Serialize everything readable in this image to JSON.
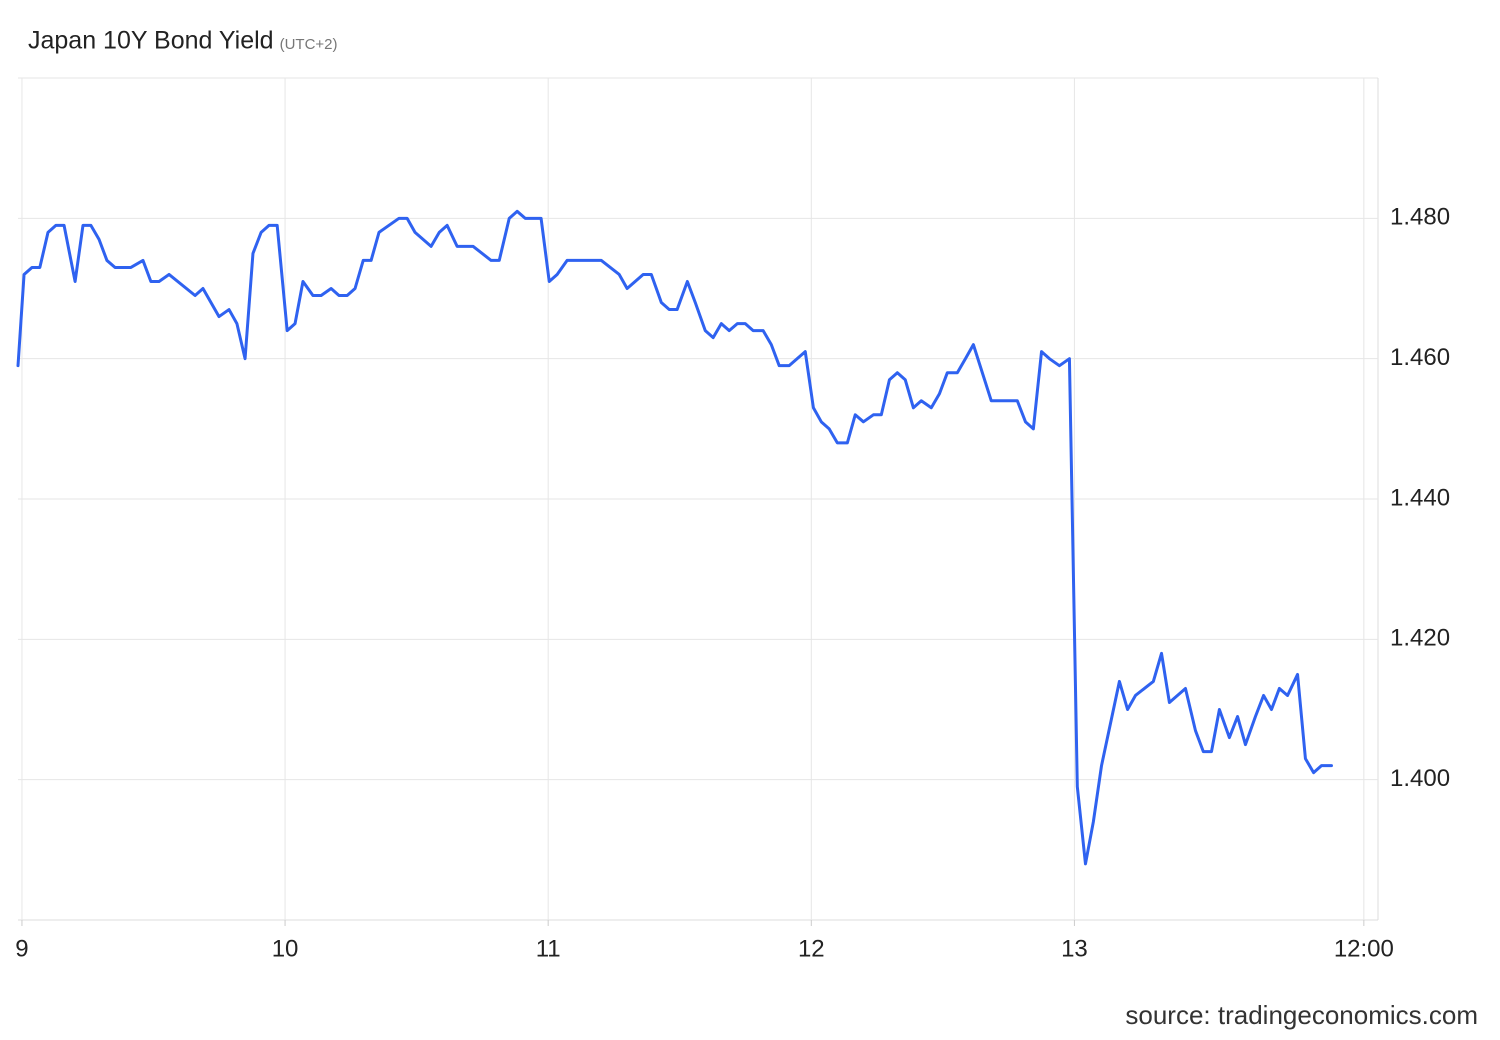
{
  "chart_data": {
    "type": "line",
    "title": "Japan 10Y Bond Yield",
    "subtitle": "(UTC+2)",
    "source": "source: tradingeconomics.com",
    "color": "#2f62f0",
    "grid": true,
    "xlim": [
      8.985,
      14.15
    ],
    "xticks": [
      9,
      10,
      11,
      12,
      13,
      {
        "value": 14.1,
        "label": "12:00"
      }
    ],
    "ylim": [
      1.38,
      1.5
    ],
    "yticks": [
      {
        "value": 1.4,
        "label": "1.400"
      },
      {
        "value": 1.42,
        "label": "1.420"
      },
      {
        "value": 1.44,
        "label": "1.440"
      },
      {
        "value": 1.46,
        "label": "1.460"
      },
      {
        "value": 1.48,
        "label": "1.480"
      }
    ],
    "x": [
      8.985,
      9.008,
      9.038,
      9.068,
      9.099,
      9.129,
      9.16,
      9.202,
      9.232,
      9.262,
      9.293,
      9.323,
      9.354,
      9.414,
      9.46,
      9.49,
      9.521,
      9.559,
      9.658,
      9.688,
      9.749,
      9.787,
      9.817,
      9.848,
      9.878,
      9.909,
      9.939,
      9.97,
      10.008,
      10.038,
      10.068,
      10.106,
      10.137,
      10.175,
      10.205,
      10.236,
      10.266,
      10.297,
      10.327,
      10.357,
      10.433,
      10.464,
      10.494,
      10.555,
      10.586,
      10.616,
      10.654,
      10.715,
      10.783,
      10.814,
      10.852,
      10.882,
      10.913,
      10.973,
      11.004,
      11.034,
      11.072,
      11.202,
      11.27,
      11.3,
      11.361,
      11.392,
      11.43,
      11.46,
      11.49,
      11.529,
      11.559,
      11.597,
      11.627,
      11.658,
      11.688,
      11.719,
      11.749,
      11.779,
      11.817,
      11.848,
      11.878,
      11.916,
      11.977,
      12.008,
      12.038,
      12.068,
      12.099,
      12.137,
      12.167,
      12.198,
      12.236,
      12.266,
      12.297,
      12.327,
      12.357,
      12.388,
      12.418,
      12.456,
      12.487,
      12.517,
      12.555,
      12.586,
      12.616,
      12.684,
      12.783,
      12.814,
      12.844,
      12.875,
      12.905,
      12.943,
      12.981,
      13.011,
      13.042,
      13.072,
      13.103,
      13.171,
      13.202,
      13.232,
      13.3,
      13.331,
      13.361,
      13.422,
      13.46,
      13.49,
      13.521,
      13.551,
      13.589,
      13.62,
      13.65,
      13.688,
      13.719,
      13.749,
      13.779,
      13.81,
      13.848,
      13.878,
      13.909,
      13.939,
      13.977
    ],
    "values": [
      1.459,
      1.472,
      1.473,
      1.473,
      1.478,
      1.479,
      1.479,
      1.471,
      1.479,
      1.479,
      1.477,
      1.474,
      1.473,
      1.473,
      1.474,
      1.471,
      1.471,
      1.472,
      1.469,
      1.47,
      1.466,
      1.467,
      1.465,
      1.46,
      1.475,
      1.478,
      1.479,
      1.479,
      1.464,
      1.465,
      1.471,
      1.469,
      1.469,
      1.47,
      1.469,
      1.469,
      1.47,
      1.474,
      1.474,
      1.478,
      1.48,
      1.48,
      1.478,
      1.476,
      1.478,
      1.479,
      1.476,
      1.476,
      1.474,
      1.474,
      1.48,
      1.481,
      1.48,
      1.48,
      1.471,
      1.472,
      1.474,
      1.474,
      1.472,
      1.47,
      1.472,
      1.472,
      1.468,
      1.467,
      1.467,
      1.471,
      1.468,
      1.464,
      1.463,
      1.465,
      1.464,
      1.465,
      1.465,
      1.464,
      1.464,
      1.462,
      1.459,
      1.459,
      1.461,
      1.453,
      1.451,
      1.45,
      1.448,
      1.448,
      1.452,
      1.451,
      1.452,
      1.452,
      1.457,
      1.458,
      1.457,
      1.453,
      1.454,
      1.453,
      1.455,
      1.458,
      1.458,
      1.46,
      1.462,
      1.454,
      1.454,
      1.451,
      1.45,
      1.461,
      1.46,
      1.459,
      1.46,
      1.399,
      1.388,
      1.394,
      1.402,
      1.414,
      1.41,
      1.412,
      1.414,
      1.418,
      1.411,
      1.413,
      1.407,
      1.404,
      1.404,
      1.41,
      1.406,
      1.409,
      1.405,
      1.409,
      1.412,
      1.41,
      1.413,
      1.412,
      1.415,
      1.403,
      1.401,
      1.402,
      1.402
    ]
  }
}
